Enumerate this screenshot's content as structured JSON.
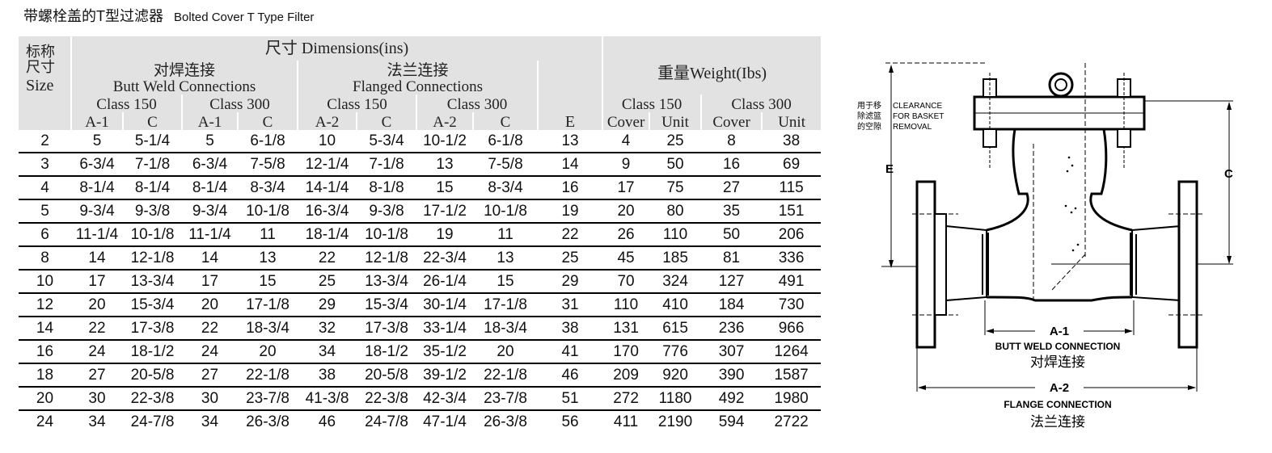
{
  "title": {
    "zh": "带螺栓盖的T型过滤器",
    "en": "Bolted Cover T Type Filter"
  },
  "table": {
    "dimensions_header": "尺寸 Dimensions(ins)",
    "weight_header": "重量Weight(Ibs)",
    "size_header_lines": [
      "标称",
      "尺寸",
      "Size"
    ],
    "butt_weld_zh": "对焊连接",
    "butt_weld_en": "Butt Weld Connections",
    "flanged_zh": "法兰连接",
    "flanged_en": "Flanged Connections",
    "class150": "Class 150",
    "class300": "Class 300",
    "col_a1": "A-1",
    "col_c": "C",
    "col_a2": "A-2",
    "col_e": "E",
    "col_cover": "Cover",
    "col_unit": "Unit",
    "rows": [
      [
        "2",
        "5",
        "5-1/4",
        "5",
        "6-1/8",
        "10",
        "5-3/4",
        "10-1/2",
        "6-1/8",
        "13",
        "4",
        "25",
        "8",
        "38"
      ],
      [
        "3",
        "6-3/4",
        "7-1/8",
        "6-3/4",
        "7-5/8",
        "12-1/4",
        "7-1/8",
        "13",
        "7-5/8",
        "14",
        "9",
        "50",
        "16",
        "69"
      ],
      [
        "4",
        "8-1/4",
        "8-1/4",
        "8-1/4",
        "8-3/4",
        "14-1/4",
        "8-1/8",
        "15",
        "8-3/4",
        "16",
        "17",
        "75",
        "27",
        "115"
      ],
      [
        "5",
        "9-3/4",
        "9-3/8",
        "9-3/4",
        "10-1/8",
        "16-3/4",
        "9-3/8",
        "17-1/2",
        "10-1/8",
        "19",
        "20",
        "80",
        "35",
        "151"
      ],
      [
        "6",
        "11-1/4",
        "10-1/8",
        "11-1/4",
        "11",
        "18-1/4",
        "10-1/8",
        "19",
        "11",
        "22",
        "26",
        "110",
        "50",
        "206"
      ],
      [
        "8",
        "14",
        "12-1/8",
        "14",
        "13",
        "22",
        "12-1/8",
        "22-3/4",
        "13",
        "25",
        "45",
        "185",
        "81",
        "336"
      ],
      [
        "10",
        "17",
        "13-3/4",
        "17",
        "15",
        "25",
        "13-3/4",
        "26-1/4",
        "15",
        "29",
        "70",
        "324",
        "127",
        "491"
      ],
      [
        "12",
        "20",
        "15-3/4",
        "20",
        "17-1/8",
        "29",
        "15-3/4",
        "30-1/4",
        "17-1/8",
        "31",
        "110",
        "410",
        "184",
        "730"
      ],
      [
        "14",
        "22",
        "17-3/8",
        "22",
        "18-3/4",
        "32",
        "17-3/8",
        "33-1/4",
        "18-3/4",
        "38",
        "131",
        "615",
        "236",
        "966"
      ],
      [
        "16",
        "24",
        "18-1/2",
        "24",
        "20",
        "34",
        "18-1/2",
        "35-1/2",
        "20",
        "41",
        "170",
        "776",
        "307",
        "1264"
      ],
      [
        "18",
        "27",
        "20-5/8",
        "27",
        "22-1/8",
        "38",
        "20-5/8",
        "39-1/2",
        "22-1/8",
        "46",
        "209",
        "920",
        "390",
        "1587"
      ],
      [
        "20",
        "30",
        "22-3/8",
        "30",
        "23-7/8",
        "41-3/8",
        "22-3/8",
        "42-3/4",
        "23-7/8",
        "51",
        "272",
        "1180",
        "492",
        "1980"
      ],
      [
        "24",
        "34",
        "24-7/8",
        "34",
        "26-3/8",
        "46",
        "24-7/8",
        "47-1/4",
        "26-3/8",
        "56",
        "411",
        "2190",
        "594",
        "2722"
      ]
    ]
  },
  "diagram": {
    "clearance_zh_lines": [
      "用于移",
      "除滤篮",
      "的空隙"
    ],
    "clearance_en_lines": [
      "CLEARANCE",
      "FOR BASKET",
      "REMOVAL"
    ],
    "label_e": "E",
    "label_c": "C",
    "label_a1": "A-1",
    "butt_weld_en": "BUTT WELD CONNECTION",
    "butt_weld_zh": "对焊连接",
    "label_a2": "A-2",
    "flange_en": "FLANGE CONNECTION",
    "flange_zh": "法兰连接"
  }
}
